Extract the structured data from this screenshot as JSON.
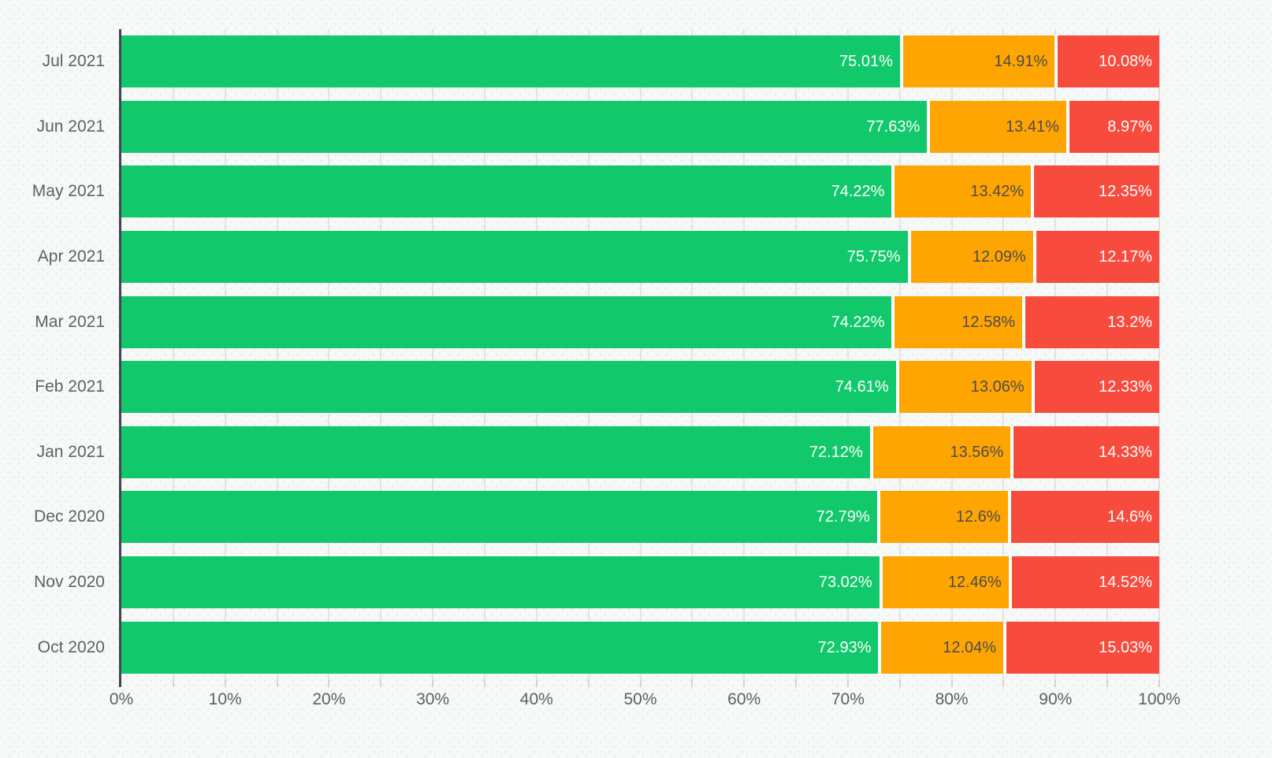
{
  "page": {
    "background_color": "#f7f8f8",
    "axis_line_color": "#41464e",
    "gridline_color": "#e2e4e4",
    "axis_text_color": "#5d6166"
  },
  "chart_data": {
    "type": "bar",
    "orientation": "horizontal",
    "stacked": true,
    "stacked_total_percent": 100,
    "title": "",
    "xlabel": "",
    "ylabel": "",
    "xlim": [
      0,
      100
    ],
    "grid_interval_percent": 5,
    "tick_interval_percent": 10,
    "legend": "none",
    "categories": [
      "Jul 2021",
      "Jun 2021",
      "May 2021",
      "Apr 2021",
      "Mar 2021",
      "Feb 2021",
      "Jan 2021",
      "Dec 2020",
      "Nov 2020",
      "Oct 2020"
    ],
    "x_ticks": [
      "0%",
      "10%",
      "20%",
      "30%",
      "40%",
      "50%",
      "60%",
      "70%",
      "80%",
      "90%",
      "100%"
    ],
    "series": [
      {
        "name": "green",
        "color": "#11c86b",
        "label_color": "#ffffff",
        "values": [
          75.01,
          77.63,
          74.22,
          75.75,
          74.22,
          74.61,
          72.12,
          72.79,
          73.02,
          72.93
        ],
        "labels": [
          "75.01%",
          "77.63%",
          "74.22%",
          "75.75%",
          "74.22%",
          "74.61%",
          "72.12%",
          "72.79%",
          "73.02%",
          "72.93%"
        ]
      },
      {
        "name": "orange",
        "color": "#ffa502",
        "label_color": "#4b4b4b",
        "values": [
          14.91,
          13.41,
          13.42,
          12.09,
          12.58,
          13.06,
          13.56,
          12.6,
          12.46,
          12.04
        ],
        "labels": [
          "14.91%",
          "13.41%",
          "13.42%",
          "12.09%",
          "12.58%",
          "13.06%",
          "13.56%",
          "12.6%",
          "12.46%",
          "12.04%"
        ]
      },
      {
        "name": "red",
        "color": "#f74b3e",
        "label_color": "#ffffff",
        "values": [
          10.08,
          8.97,
          12.35,
          12.17,
          13.2,
          12.33,
          14.33,
          14.6,
          14.52,
          15.03
        ],
        "labels": [
          "10.08%",
          "8.97%",
          "12.35%",
          "12.17%",
          "13.2%",
          "12.33%",
          "14.33%",
          "14.6%",
          "14.52%",
          "15.03%"
        ]
      }
    ]
  }
}
